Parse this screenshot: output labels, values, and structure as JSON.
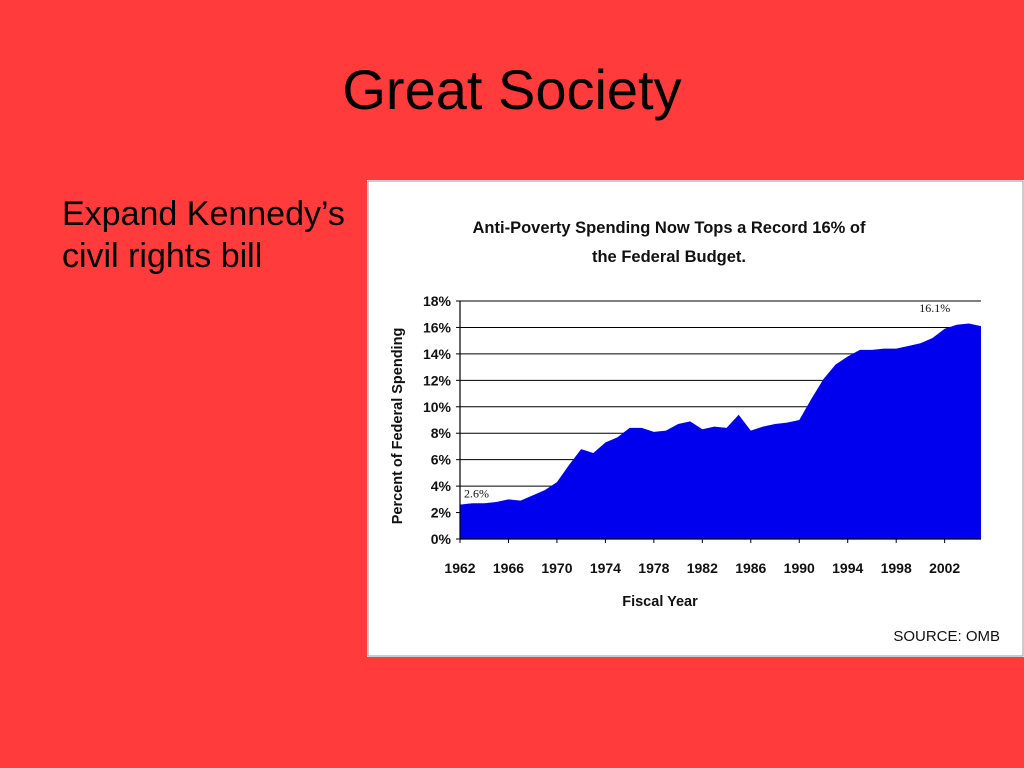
{
  "slide": {
    "title": "Great Society",
    "bullet": "Expand Kennedy’s civil rights bill"
  },
  "chart_data": {
    "type": "area",
    "title_lines": [
      "Anti-Poverty Spending Now Tops a Record 16% of",
      "the Federal Budget."
    ],
    "xlabel": "Fiscal Year",
    "ylabel": "Percent of Federal Spending",
    "source": "SOURCE: OMB",
    "y_ticks": [
      "0%",
      "2%",
      "4%",
      "6%",
      "8%",
      "10%",
      "12%",
      "14%",
      "16%",
      "18%"
    ],
    "ylim": [
      0,
      18
    ],
    "xlim": [
      1962,
      2005
    ],
    "x_ticks": [
      1962,
      1966,
      1970,
      1974,
      1978,
      1982,
      1986,
      1990,
      1994,
      1998,
      2002
    ],
    "grid": "horizontal",
    "fill_color": "#0000ee",
    "annotations": [
      {
        "text": "2.6%",
        "x": 1962,
        "y": 2.6
      },
      {
        "text": "16.1%",
        "x": 2003,
        "y": 16.1
      }
    ],
    "series": [
      {
        "x": [
          1962,
          1963,
          1964,
          1965,
          1966,
          1967,
          1968,
          1969,
          1970,
          1971,
          1972,
          1973,
          1974,
          1975,
          1976,
          1977,
          1978,
          1979,
          1980,
          1981,
          1982,
          1983,
          1984,
          1985,
          1986,
          1987,
          1988,
          1989,
          1990,
          1991,
          1992,
          1993,
          1994,
          1995,
          1996,
          1997,
          1998,
          1999,
          2000,
          2001,
          2002,
          2003,
          2004,
          2005
        ],
        "values": [
          2.6,
          2.7,
          2.7,
          2.8,
          3.0,
          2.9,
          3.3,
          3.7,
          4.3,
          5.6,
          6.8,
          6.5,
          7.3,
          7.7,
          8.4,
          8.4,
          8.1,
          8.2,
          8.7,
          8.9,
          8.3,
          8.5,
          8.4,
          9.4,
          8.2,
          8.5,
          8.7,
          8.8,
          9.0,
          10.6,
          12.1,
          13.2,
          13.8,
          14.3,
          14.3,
          14.4,
          14.4,
          14.6,
          14.8,
          15.2,
          15.9,
          16.2,
          16.3,
          16.1
        ]
      }
    ]
  }
}
